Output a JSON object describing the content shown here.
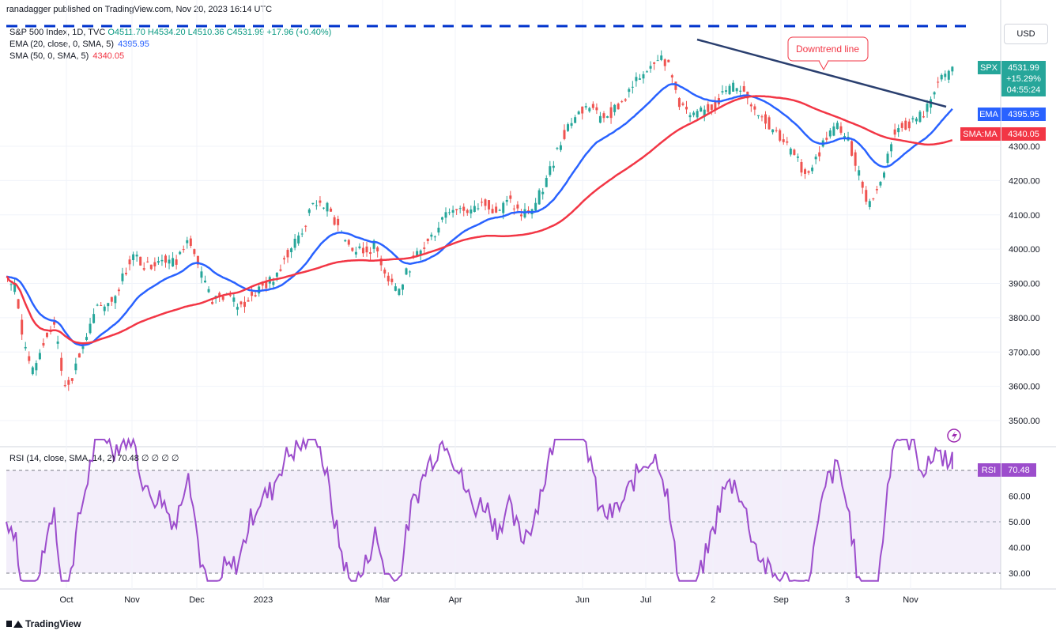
{
  "publisher_line": "ranadagger published on TradingView.com, Nov 20, 2023 16:14 UTC",
  "legend": {
    "symbol": "S&P 500 Index, 1D, TVC",
    "ohlc": "O4511.70 H4534.20 L4510.36 C4531.99 +17.96 (+0.40%)",
    "ema_label": "EMA (20, close, 0, SMA, 5)",
    "ema_value": "4395.95",
    "sma_label": "SMA (50, 0, SMA, 5)",
    "sma_value": "4340.05"
  },
  "currency_button": "USD",
  "badges": {
    "spx": {
      "tag": "SPX",
      "price": "4531.99",
      "change": "+15.29%",
      "timer": "04:55:24"
    },
    "ema": {
      "tag": "EMA",
      "value": "4395.95"
    },
    "sma": {
      "tag": "SMA:MA",
      "value": "4340.05"
    },
    "rsi": {
      "tag": "RSI",
      "value": "70.48"
    }
  },
  "annotation": "Downtrend line",
  "rsi_legend": "RSI (14, close, SMA, 14, 2)  70.48  ∅ ∅ ∅ ∅",
  "footer_brand": "TradingView",
  "colors": {
    "up": "#26a69a",
    "down": "#ef5350",
    "ema": "#2962ff",
    "sma": "#f23645",
    "rsi": "#9c4dcc",
    "trendline": "#2a3f6f",
    "dashed": "#0033cc"
  },
  "chart_data": [
    {
      "type": "candlestick",
      "title": "S&P 500 Index, 1D, TVC",
      "y_ticks": [
        3500,
        3600,
        3700,
        3800,
        3900,
        4000,
        4100,
        4200,
        4300
      ],
      "ylim": [
        3450,
        4560
      ],
      "x_ticks": [
        "Oct",
        "Nov",
        "Dec",
        "2023",
        "Mar",
        "Apr",
        "Jun",
        "Jul",
        "2",
        "Sep",
        "3",
        "Nov"
      ],
      "close_series": [
        [
          0,
          3920
        ],
        [
          8,
          3880
        ],
        [
          15,
          3720
        ],
        [
          22,
          3640
        ],
        [
          30,
          3720
        ],
        [
          40,
          3785
        ],
        [
          48,
          3600
        ],
        [
          55,
          3630
        ],
        [
          62,
          3700
        ],
        [
          75,
          3820
        ],
        [
          90,
          3860
        ],
        [
          105,
          3980
        ],
        [
          118,
          3950
        ],
        [
          130,
          3980
        ],
        [
          142,
          3960
        ],
        [
          152,
          4050
        ],
        [
          162,
          3930
        ],
        [
          172,
          3840
        ],
        [
          182,
          3870
        ],
        [
          195,
          3830
        ],
        [
          210,
          3880
        ],
        [
          222,
          3910
        ],
        [
          235,
          3990
        ],
        [
          248,
          4060
        ],
        [
          258,
          4140
        ],
        [
          268,
          4120
        ],
        [
          278,
          4060
        ],
        [
          288,
          4000
        ],
        [
          298,
          3990
        ],
        [
          308,
          4010
        ],
        [
          318,
          3920
        ],
        [
          328,
          3880
        ],
        [
          338,
          3960
        ],
        [
          348,
          4000
        ],
        [
          358,
          4050
        ],
        [
          368,
          4120
        ],
        [
          378,
          4120
        ],
        [
          390,
          4110
        ],
        [
          400,
          4140
        ],
        [
          410,
          4110
        ],
        [
          420,
          4140
        ],
        [
          430,
          4100
        ],
        [
          440,
          4120
        ],
        [
          450,
          4190
        ],
        [
          460,
          4290
        ],
        [
          470,
          4370
        ],
        [
          480,
          4400
        ],
        [
          488,
          4420
        ],
        [
          495,
          4380
        ],
        [
          505,
          4400
        ],
        [
          515,
          4430
        ],
        [
          525,
          4480
        ],
        [
          535,
          4530
        ],
        [
          545,
          4570
        ],
        [
          552,
          4540
        ],
        [
          562,
          4430
        ],
        [
          572,
          4380
        ],
        [
          582,
          4400
        ],
        [
          592,
          4420
        ],
        [
          600,
          4460
        ],
        [
          610,
          4480
        ],
        [
          618,
          4450
        ],
        [
          628,
          4400
        ],
        [
          638,
          4360
        ],
        [
          648,
          4320
        ],
        [
          658,
          4270
        ],
        [
          668,
          4220
        ],
        [
          676,
          4260
        ],
        [
          685,
          4330
        ],
        [
          695,
          4360
        ],
        [
          705,
          4300
        ],
        [
          712,
          4220
        ],
        [
          720,
          4130
        ],
        [
          730,
          4190
        ],
        [
          740,
          4330
        ],
        [
          750,
          4360
        ],
        [
          760,
          4380
        ],
        [
          768,
          4400
        ],
        [
          776,
          4480
        ],
        [
          784,
          4500
        ],
        [
          790,
          4532
        ]
      ],
      "ema20": "EMA (20, close, 0, SMA, 5) = 4395.95",
      "sma50": "SMA (50, 0, SMA, 5) = 4340.05",
      "last_close": 4531.99
    },
    {
      "type": "line",
      "title": "RSI (14, close, SMA, 14, 2)",
      "y_ticks": [
        30,
        40,
        50,
        60
      ],
      "ylim": [
        24,
        86
      ],
      "levels": [
        30,
        50,
        70
      ],
      "last": 70.48
    }
  ]
}
